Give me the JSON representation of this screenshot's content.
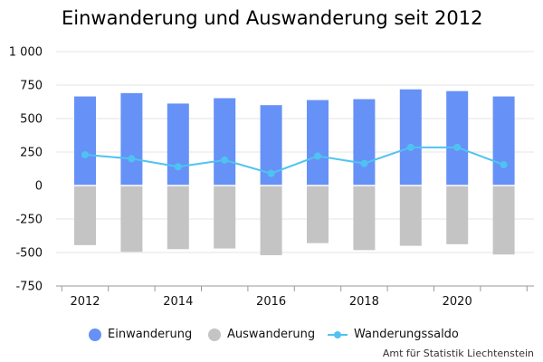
{
  "chart_data": {
    "type": "bar",
    "title": "Einwanderung und Auswanderung seit 2012",
    "xlabel": "",
    "ylabel": "",
    "x": [
      2012,
      2013,
      2014,
      2015,
      2016,
      2017,
      2018,
      2019,
      2020,
      2021
    ],
    "x_tick_labels": [
      "2012",
      "2014",
      "2016",
      "2018",
      "2020"
    ],
    "x_tick_values": [
      2012,
      2014,
      2016,
      2018,
      2020
    ],
    "ylim": [
      -750,
      1000
    ],
    "y_ticks": [
      1000,
      750,
      500,
      250,
      0,
      -250,
      -500,
      -750
    ],
    "y_tick_labels": [
      "1 000",
      "750",
      "500",
      "250",
      "0",
      "-250",
      "-500",
      "-750"
    ],
    "grid": true,
    "legend_position": "bottom",
    "series": [
      {
        "name": "Einwanderung",
        "type": "bar",
        "color": "#6691f7",
        "values": [
          665,
          690,
          612,
          652,
          600,
          638,
          645,
          718,
          705,
          665
        ]
      },
      {
        "name": "Auswanderung",
        "type": "bar",
        "color": "#c4c4c4",
        "values": [
          -445,
          -495,
          -475,
          -470,
          -520,
          -430,
          -482,
          -450,
          -438,
          -515
        ]
      },
      {
        "name": "Wanderungssaldo",
        "type": "line",
        "color": "#4fc3f0",
        "values": [
          230,
          200,
          140,
          190,
          90,
          220,
          165,
          285,
          285,
          155
        ]
      }
    ],
    "source": "Amt für Statistik Liechtenstein"
  }
}
